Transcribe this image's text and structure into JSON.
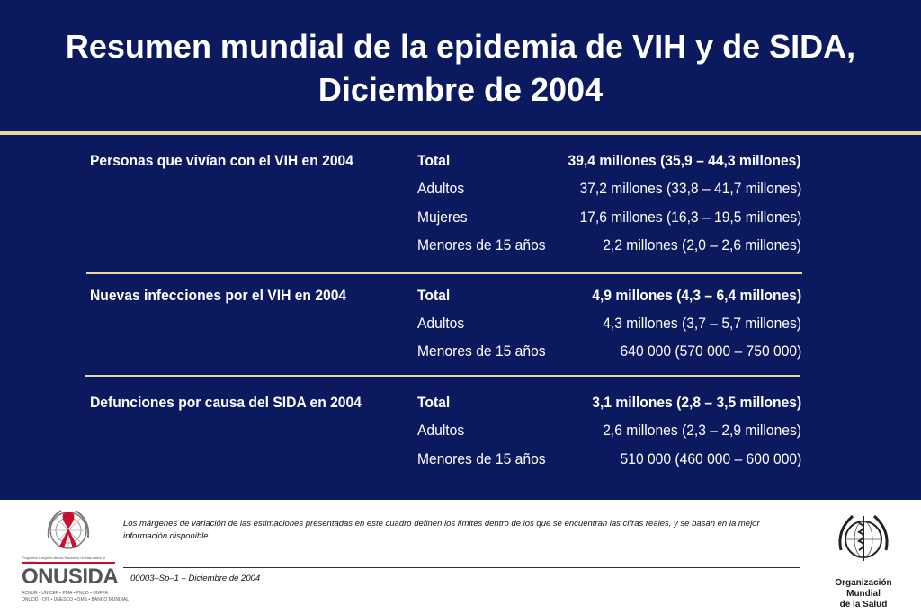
{
  "title": {
    "line1": "Resumen mundial de la epidemia de VIH y de SIDA,",
    "line2": "Diciembre de 2004"
  },
  "sections": [
    {
      "category": "Personas que vivían con el VIH en 2004",
      "rows": [
        {
          "label": "Total",
          "value": "39,4 millones (35,9 – 44,3 millones)"
        },
        {
          "label": "Adultos",
          "value": "37,2 millones (33,8 – 41,7 millones)"
        },
        {
          "label": "Mujeres",
          "value": "17,6 millones (16,3 – 19,5 millones)"
        },
        {
          "label": "Menores de 15 años",
          "value": "2,2 millones (2,0 – 2,6 millones)"
        }
      ]
    },
    {
      "category": "Nuevas infecciones por el VIH en 2004",
      "rows": [
        {
          "label": "Total",
          "value": "4,9 millones (4,3 – 6,4 millones)"
        },
        {
          "label": "Adultos",
          "value": "4,3 millones (3,7 – 5,7 millones)"
        },
        {
          "label": "Menores de 15 años",
          "value": "640 000 (570 000 – 750 000)"
        }
      ]
    },
    {
      "category": "Defunciones por causa del SIDA en 2004",
      "rows": [
        {
          "label": "Total",
          "value": "3,1 millones (2,8 – 3,5 millones)"
        },
        {
          "label": "Adultos",
          "value": "2,6 millones (2,3 – 2,9 millones)"
        },
        {
          "label": "Menores de 15 años",
          "value": "510 000 (460 000 – 600 000)"
        }
      ]
    }
  ],
  "footer": {
    "note": "Los márgenes de variación de las estimaciones presentadas en este cuadro definen los límites dentro de los que se encuentran las cifras reales, y se basan en la mejor información disponible.",
    "code": "00003–Sp–1 – Diciembre de 2004",
    "onusida_name": "ONUSIDA",
    "onusida_program": "Programa Conjunto de las Naciones Unidas sobre el VIH/SIDA",
    "onusida_members1": "ACNUR • UNICEF • PMA • PNUD • UNFPA",
    "onusida_members2": "ONUDD • OIT • UNESCO • OMS • BANCO MUNDIAL",
    "who_line1": "Organización",
    "who_line2": "Mundial",
    "who_line3": "de la Salud"
  },
  "colors": {
    "background": "#0b1a5e",
    "accent_rule": "#e8d9a0",
    "text": "#ffffff",
    "onusida_red": "#c8102e"
  },
  "icons": [
    "red-ribbon-icon",
    "un-emblem-icon",
    "who-emblem-icon"
  ]
}
